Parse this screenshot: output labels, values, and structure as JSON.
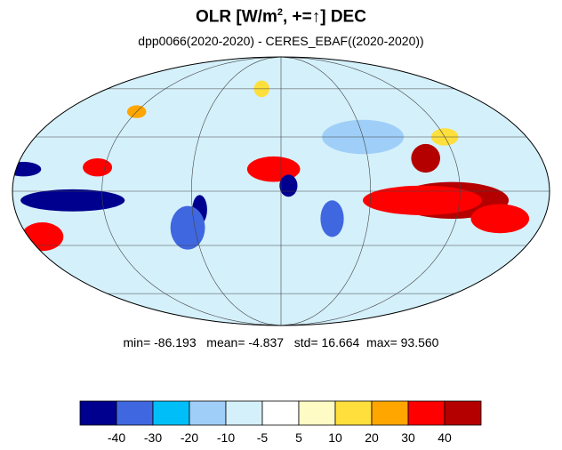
{
  "title": {
    "prefix": "OLR [W/m",
    "sup": "2",
    "suffix": ", +=↑] DEC"
  },
  "subtitle": "dpp0066(2020-2020) - CERES_EBAF((2020-2020))",
  "stats": {
    "min_label": "min=",
    "min": "-86.193",
    "mean_label": "mean=",
    "mean": "-4.837",
    "std_label": "std=",
    "std": "16.664",
    "max_label": "max=",
    "max": "93.560"
  },
  "colorbar": {
    "colors": [
      "#00008f",
      "#3f67e0",
      "#00bff8",
      "#9fcff8",
      "#d4f0fb",
      "#ffffff",
      "#fffbc5",
      "#ffdf3b",
      "#ffa600",
      "#ff0000",
      "#b50000"
    ],
    "tick_labels": [
      "-40",
      "-30",
      "-20",
      "-10",
      "-5",
      "5",
      "10",
      "20",
      "30",
      "40"
    ]
  },
  "map": {
    "projection": "Mollweide",
    "ocean_background": "#d4f0fb",
    "features": [
      {
        "color": "#b50000",
        "lon": 115,
        "lat": -5,
        "rx": 38,
        "ry": 10
      },
      {
        "color": "#ff0000",
        "lon": 95,
        "lat": -5,
        "rx": 40,
        "ry": 8
      },
      {
        "color": "#b50000",
        "lon": 100,
        "lat": 18,
        "rx": 10,
        "ry": 8
      },
      {
        "color": "#ff0000",
        "lon": 150,
        "lat": -15,
        "rx": 20,
        "ry": 8
      },
      {
        "color": "#ff0000",
        "lon": -5,
        "lat": 12,
        "rx": 18,
        "ry": 7
      },
      {
        "color": "#ff0000",
        "lon": -170,
        "lat": -25,
        "rx": 15,
        "ry": 8
      },
      {
        "color": "#ff0000",
        "lon": -125,
        "lat": 13,
        "rx": 10,
        "ry": 5
      },
      {
        "color": "#00008f",
        "lon": -140,
        "lat": -5,
        "rx": 35,
        "ry": 6
      },
      {
        "color": "#00008f",
        "lon": -175,
        "lat": 12,
        "rx": 12,
        "ry": 4
      },
      {
        "color": "#00008f",
        "lon": 5,
        "lat": 3,
        "rx": 6,
        "ry": 6
      },
      {
        "color": "#00008f",
        "lon": -55,
        "lat": -10,
        "rx": 5,
        "ry": 8
      },
      {
        "color": "#3f67e0",
        "lon": -65,
        "lat": -20,
        "rx": 12,
        "ry": 12
      },
      {
        "color": "#3f67e0",
        "lon": 35,
        "lat": -15,
        "rx": 8,
        "ry": 10
      },
      {
        "color": "#ffdf3b",
        "lon": -20,
        "lat": 60,
        "rx": 8,
        "ry": 6
      },
      {
        "color": "#ffa600",
        "lon": -120,
        "lat": 45,
        "rx": 8,
        "ry": 4
      },
      {
        "color": "#ffdf3b",
        "lon": 120,
        "lat": 30,
        "rx": 10,
        "ry": 5
      },
      {
        "color": "#9fcff8",
        "lon": 60,
        "lat": 30,
        "rx": 30,
        "ry": 10
      }
    ]
  }
}
